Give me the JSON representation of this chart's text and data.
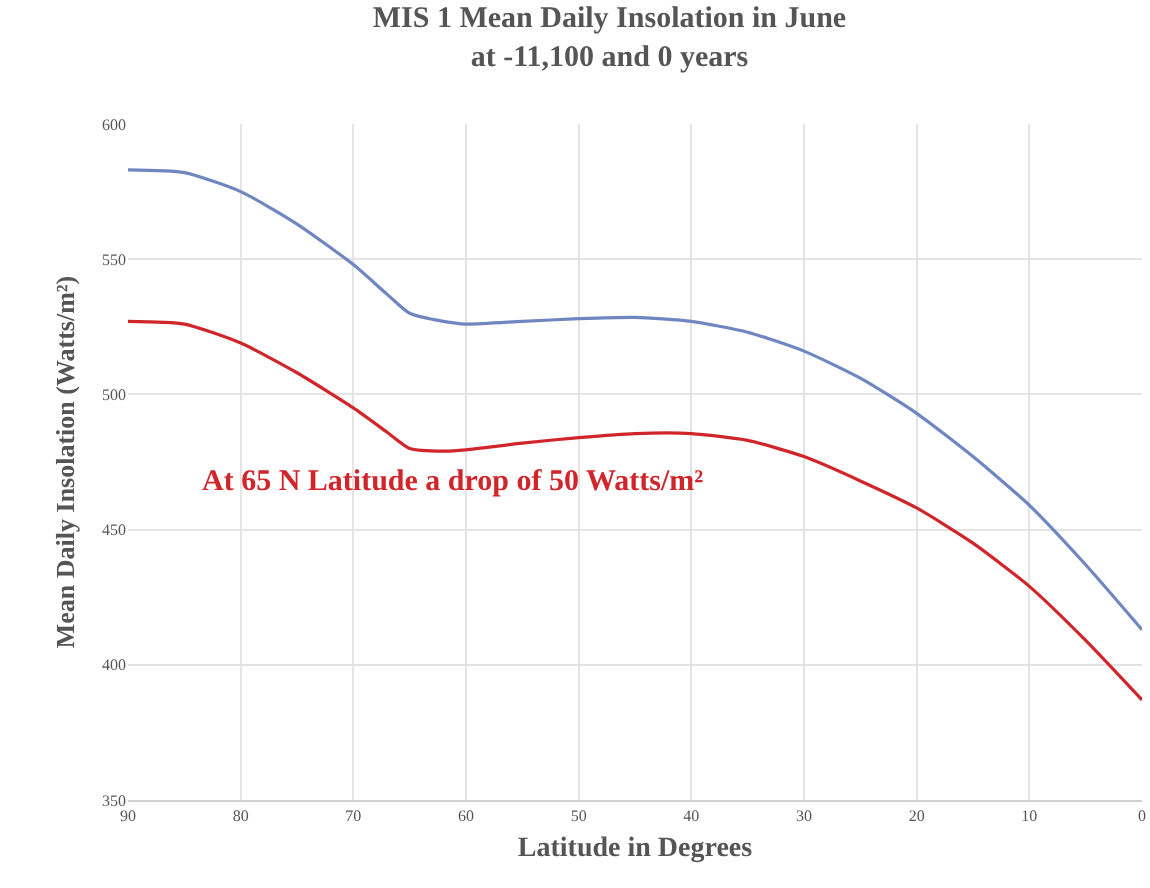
{
  "chart_data": {
    "type": "line",
    "title": "MIS 1 Mean Daily Insolation in June\nat -11,100 and 0 years",
    "xlabel": "Latitude in Degrees",
    "ylabel": "Mean Daily Insolation (Watts/m²)",
    "x": [
      90,
      85,
      80,
      75,
      70,
      67,
      65,
      62,
      60,
      55,
      50,
      45,
      40,
      35,
      30,
      25,
      20,
      15,
      10,
      5,
      0
    ],
    "series": [
      {
        "color": "#6f86c0",
        "values": [
          583,
          582,
          575,
          563,
          548,
          537,
          530,
          527,
          526,
          527,
          528,
          528.5,
          527,
          523,
          516,
          506,
          493,
          477,
          459,
          437,
          413
        ]
      },
      {
        "color": "#d0252a",
        "values": [
          527,
          526,
          519,
          508,
          495,
          486,
          480,
          479,
          479.5,
          482,
          484,
          485.5,
          485.5,
          483,
          477,
          468,
          458,
          445,
          429,
          409,
          387
        ]
      }
    ],
    "xlim": [
      90,
      0
    ],
    "xticks": [
      90,
      80,
      70,
      60,
      50,
      40,
      30,
      20,
      10,
      0
    ],
    "ylim": [
      350,
      600
    ],
    "yticks": [
      350,
      400,
      450,
      500,
      550,
      600
    ],
    "grid": true,
    "marker": "none",
    "line_style": "solid",
    "annotations": [
      "At 65 N Latitude a drop of 50 Watts/m²"
    ]
  }
}
